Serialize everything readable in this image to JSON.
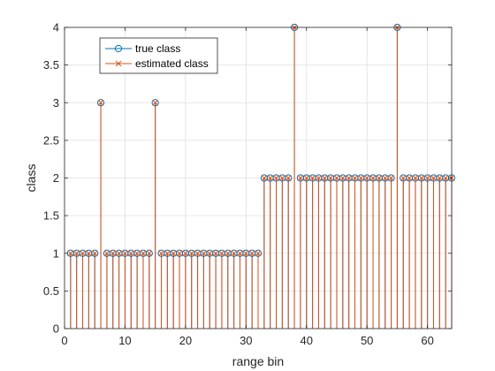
{
  "chart_data": {
    "type": "stem",
    "xlabel": "range bin",
    "ylabel": "class",
    "xlim": [
      0,
      64
    ],
    "ylim": [
      0,
      4
    ],
    "xticks": [
      0,
      10,
      20,
      30,
      40,
      50,
      60
    ],
    "yticks": [
      0,
      0.5,
      1,
      1.5,
      2,
      2.5,
      3,
      3.5,
      4
    ],
    "grid": true,
    "legend_position": "top-left",
    "x": [
      1,
      2,
      3,
      4,
      5,
      6,
      7,
      8,
      9,
      10,
      11,
      12,
      13,
      14,
      15,
      16,
      17,
      18,
      19,
      20,
      21,
      22,
      23,
      24,
      25,
      26,
      27,
      28,
      29,
      30,
      31,
      32,
      33,
      34,
      35,
      36,
      37,
      38,
      39,
      40,
      41,
      42,
      43,
      44,
      45,
      46,
      47,
      48,
      49,
      50,
      51,
      52,
      53,
      54,
      55,
      56,
      57,
      58,
      59,
      60,
      61,
      62,
      63,
      64
    ],
    "series": [
      {
        "name": "true class",
        "marker": "circle",
        "color": "#0072BD",
        "values": [
          1,
          1,
          1,
          1,
          1,
          3,
          1,
          1,
          1,
          1,
          1,
          1,
          1,
          1,
          3,
          1,
          1,
          1,
          1,
          1,
          1,
          1,
          1,
          1,
          1,
          1,
          1,
          1,
          1,
          1,
          1,
          1,
          2,
          2,
          2,
          2,
          2,
          4,
          2,
          2,
          2,
          2,
          2,
          2,
          2,
          2,
          2,
          2,
          2,
          2,
          2,
          2,
          2,
          2,
          4,
          2,
          2,
          2,
          2,
          2,
          2,
          2,
          2,
          2
        ]
      },
      {
        "name": "estimated class",
        "marker": "x",
        "color": "#D95319",
        "values": [
          1,
          1,
          1,
          1,
          1,
          3,
          1,
          1,
          1,
          1,
          1,
          1,
          1,
          1,
          3,
          1,
          1,
          1,
          1,
          1,
          1,
          1,
          1,
          1,
          1,
          1,
          1,
          1,
          1,
          1,
          1,
          1,
          2,
          2,
          2,
          2,
          2,
          4,
          2,
          2,
          2,
          2,
          2,
          2,
          2,
          2,
          2,
          2,
          2,
          2,
          2,
          2,
          2,
          2,
          4,
          2,
          2,
          2,
          2,
          2,
          2,
          2,
          2,
          2
        ]
      }
    ]
  }
}
